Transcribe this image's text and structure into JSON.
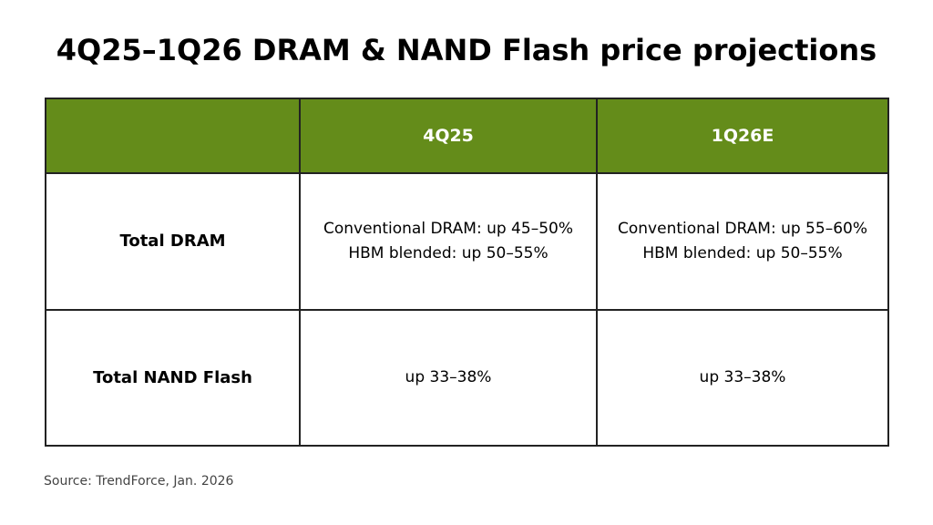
{
  "title": "4Q25–1Q26 DRAM & NAND Flash price projections",
  "chart_data": {
    "type": "table",
    "title": "4Q25–1Q26 DRAM & NAND Flash price projections",
    "columns": [
      "",
      "4Q25",
      "1Q26E"
    ],
    "rows": [
      {
        "label": "Total DRAM",
        "cells": [
          [
            "Conventional DRAM: up 45–50%",
            "HBM blended: up 50–55%"
          ],
          [
            "Conventional DRAM: up 55–60%",
            "HBM blended: up 50–55%"
          ]
        ]
      },
      {
        "label": "Total NAND Flash",
        "cells": [
          [
            "up 33–38%"
          ],
          [
            "up 33–38%"
          ]
        ]
      }
    ],
    "header_color": "#648c1a"
  },
  "source": "Source: TrendForce, Jan. 2026"
}
